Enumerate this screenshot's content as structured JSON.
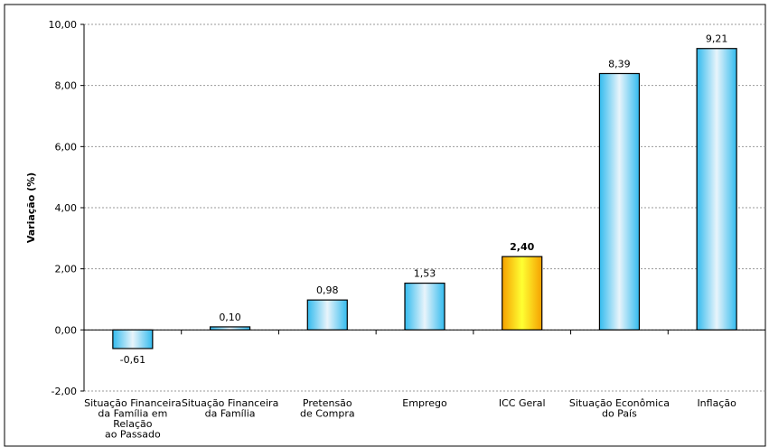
{
  "chart_data": {
    "type": "bar",
    "y_label": "Variação (%)",
    "categories": [
      "Situação Financeira\nda Família em\nRelação\nao Passado",
      "Situação Financeira\nda Família",
      "Pretensão\nde Compra",
      "Emprego",
      "ICC Geral",
      "Situação Econômica\ndo País",
      "Inflação"
    ],
    "values": [
      -0.61,
      0.1,
      0.98,
      1.53,
      2.4,
      8.39,
      9.21
    ],
    "value_labels": [
      "-0,61",
      "0,10",
      "0,98",
      "1,53",
      "2,40",
      "8,39",
      "9,21"
    ],
    "colors": [
      "#33bbee",
      "#33bbee",
      "#33bbee",
      "#33bbee",
      "#f5a000",
      "#33bbee",
      "#33bbee"
    ],
    "ylim": [
      -2,
      10
    ],
    "yticks": [
      {
        "value": -2,
        "label": "-2,00"
      },
      {
        "value": 0,
        "label": "0,00"
      },
      {
        "value": 2,
        "label": "2,00"
      },
      {
        "value": 4,
        "label": "4,00"
      },
      {
        "value": 6,
        "label": "6,00"
      },
      {
        "value": 8,
        "label": "8,00"
      },
      {
        "value": 10,
        "label": "10,00"
      }
    ],
    "grid": true
  }
}
